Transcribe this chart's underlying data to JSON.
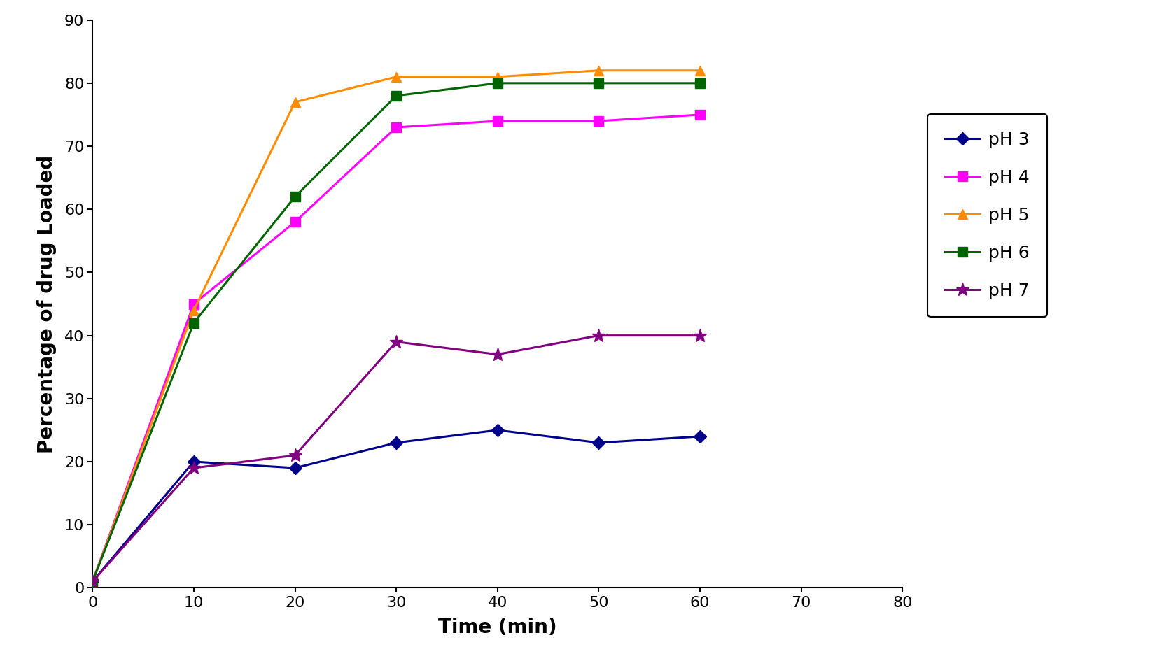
{
  "time": [
    0,
    10,
    20,
    30,
    40,
    50,
    60
  ],
  "pH3": [
    1,
    20,
    19,
    23,
    25,
    23,
    24
  ],
  "pH4": [
    1,
    45,
    58,
    73,
    74,
    74,
    75
  ],
  "pH5": [
    1,
    44,
    77,
    81,
    81,
    82,
    82
  ],
  "pH6": [
    1,
    42,
    62,
    78,
    80,
    80,
    80
  ],
  "pH7": [
    1,
    19,
    21,
    39,
    37,
    40,
    40
  ],
  "color_pH3": "#00008B",
  "color_pH4": "#FF00FF",
  "color_pH5": "#FF8C00",
  "color_pH6": "#006400",
  "color_pH7": "#800080",
  "xlabel": "Time (min)",
  "ylabel": "Percentage of drug Loaded",
  "xlim": [
    0,
    80
  ],
  "ylim": [
    0,
    90
  ],
  "xticks": [
    0,
    10,
    20,
    30,
    40,
    50,
    60,
    70,
    80
  ],
  "yticks": [
    0,
    10,
    20,
    30,
    40,
    50,
    60,
    70,
    80,
    90
  ],
  "legend_labels": [
    "pH 3",
    "pH 4",
    "pH 5",
    "pH 6",
    "pH 7"
  ]
}
